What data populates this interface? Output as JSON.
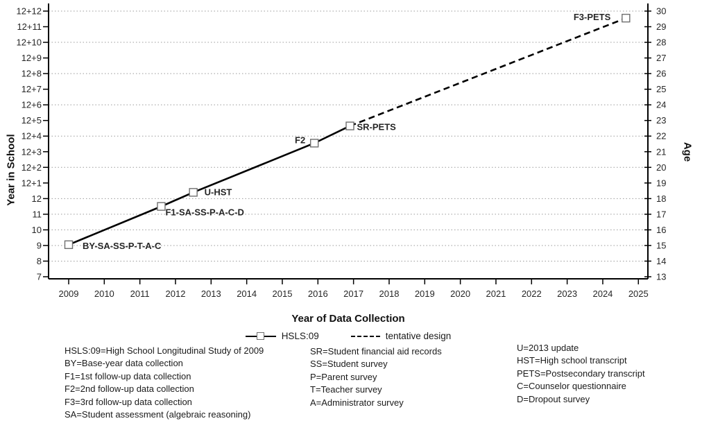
{
  "figure": {
    "y_left_title": "Year in School",
    "y_right_title": "Age",
    "x_title": "Year of Data Collection"
  },
  "legend": {
    "items": [
      {
        "label": "HSLS:09",
        "style": "solid-line-square-marker"
      },
      {
        "label": "tentative design",
        "style": "dashed-line"
      }
    ]
  },
  "footnotes": {
    "columns": [
      {
        "lines": [
          "HSLS:09=High School Longitudinal Study of 2009",
          "BY=Base-year data collection",
          "F1=1st follow-up data collection",
          "F2=2nd follow-up data collection",
          "F3=3rd follow-up data collection",
          "SA=Student assessment (algebraic reasoning)"
        ]
      },
      {
        "lines": [
          "SR=Student financial aid records",
          "SS=Student survey",
          "P=Parent survey",
          "T=Teacher survey",
          "A=Administrator survey"
        ]
      },
      {
        "lines": [
          "U=2013 update",
          "HST=High school transcript",
          "PETS=Postsecondary transcript",
          "C=Counselor questionnaire",
          "D=Dropout survey"
        ]
      }
    ]
  },
  "chart_data": {
    "type": "line",
    "xlabel": "Year of Data Collection",
    "ylabel_left": "Year in School",
    "ylabel_right": "Age",
    "x_ticks": [
      2009,
      2010,
      2011,
      2012,
      2013,
      2014,
      2015,
      2016,
      2017,
      2018,
      2019,
      2020,
      2021,
      2022,
      2023,
      2024,
      2025
    ],
    "y_left_tick_labels": [
      "7",
      "8",
      "9",
      "10",
      "11",
      "12",
      "12+1",
      "12+2",
      "12+3",
      "12+4",
      "12+5",
      "12+6",
      "12+7",
      "12+8",
      "12+9",
      "12+10",
      "12+11",
      "12+12"
    ],
    "y_right_tick_labels": [
      "13",
      "14",
      "15",
      "16",
      "17",
      "18",
      "19",
      "20",
      "21",
      "22",
      "23",
      "24",
      "25",
      "26",
      "27",
      "28",
      "29",
      "30"
    ],
    "y_axis_age_range": [
      13,
      30
    ],
    "x_range": [
      2009,
      2025
    ],
    "grid": "dotted-horizontal",
    "gridline_ages": [
      14,
      15,
      16,
      17,
      18,
      20,
      22,
      24,
      26,
      28,
      30
    ],
    "legend_position": "below-x-title",
    "colors": {
      "line": "#000000",
      "marker_stroke": "#6e6e6e",
      "grid": "#999999",
      "tick_text": "#262626"
    },
    "series": [
      {
        "name": "HSLS:09",
        "style": "solid",
        "points": [
          {
            "year": 2009.0,
            "age": 15.05,
            "school_year": "9",
            "label": "BY-SA-SS-P-T-A-C",
            "anchor": "start",
            "dx": 20,
            "dy": 6,
            "marker": true
          },
          {
            "year": 2011.6,
            "age": 17.5,
            "school_year": "11.5",
            "label": "F1-SA-SS-P-A-C-D",
            "anchor": "start",
            "dx": 6,
            "dy": 13,
            "marker": true
          },
          {
            "year": 2012.5,
            "age": 18.4,
            "school_year": "12.4",
            "label": "U-HST",
            "anchor": "start",
            "dx": 16,
            "dy": 4,
            "marker": true
          },
          {
            "year": 2015.9,
            "age": 21.55,
            "school_year": "12+3.5",
            "label": "F2",
            "anchor": "end",
            "dx": -13,
            "dy": 0,
            "marker": true
          },
          {
            "year": 2016.9,
            "age": 22.65,
            "school_year": "12+4.6",
            "label": "SR-PETS",
            "anchor": "start",
            "dx": 10,
            "dy": 6,
            "marker": true
          }
        ]
      },
      {
        "name": "tentative design",
        "style": "dashed",
        "points": [
          {
            "year": 2016.9,
            "age": 22.65,
            "school_year": "12+4.6",
            "label": "",
            "anchor": "start",
            "dx": 0,
            "dy": 0,
            "marker": false
          },
          {
            "year": 2024.65,
            "age": 29.55,
            "school_year": "12+11.5",
            "label": "F3-PETS",
            "anchor": "end",
            "dx": -22,
            "dy": 3,
            "marker": true
          }
        ]
      }
    ]
  }
}
